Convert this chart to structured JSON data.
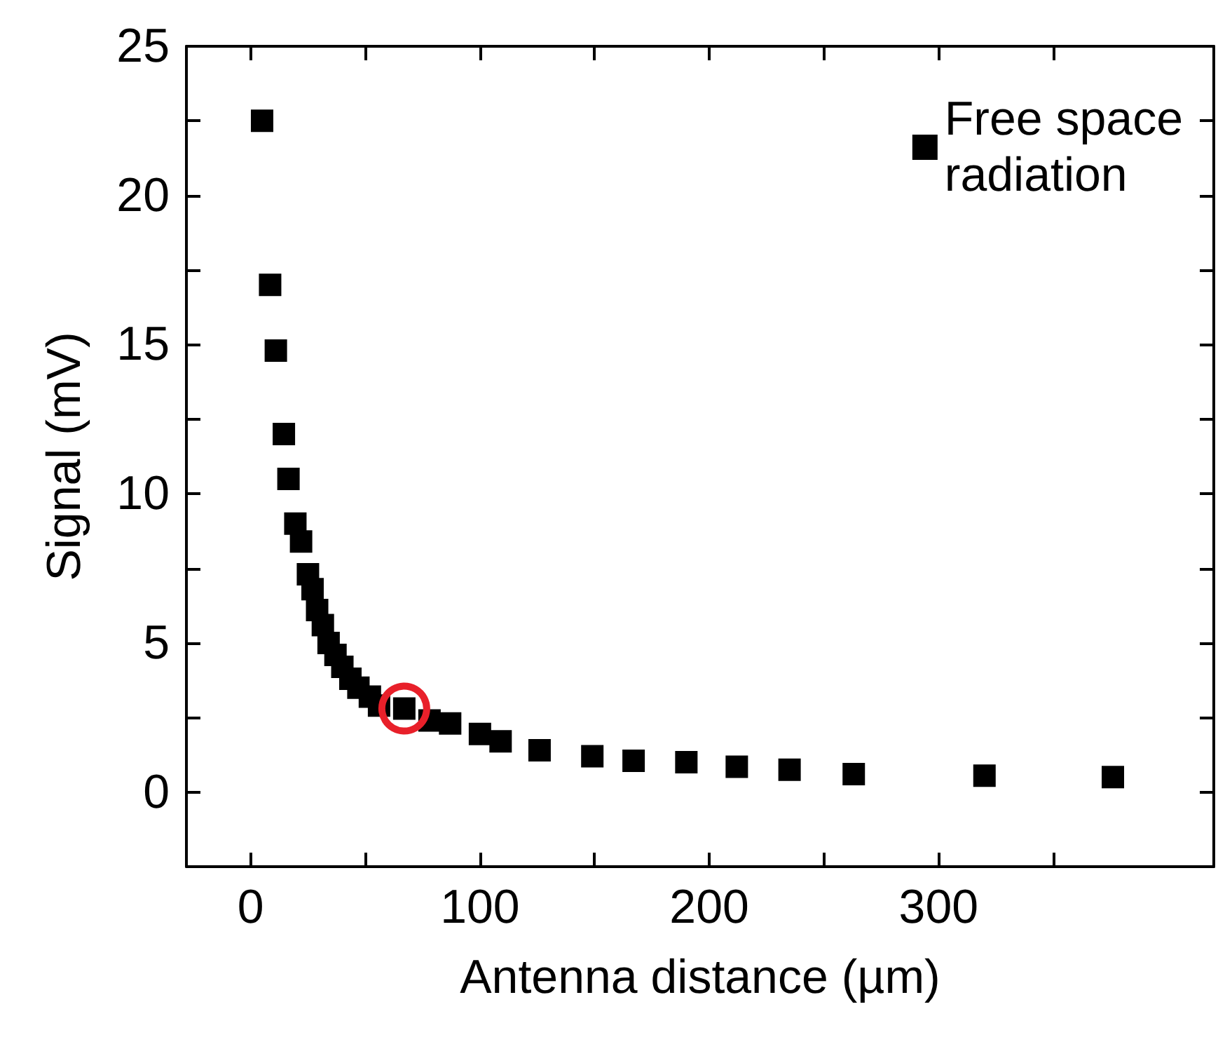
{
  "chart_data": {
    "type": "scatter",
    "xlabel": "Antenna distance (µm)",
    "ylabel": "Signal (mV)",
    "xlim": [
      -28,
      420
    ],
    "ylim": [
      -2.5,
      25
    ],
    "xticks": [
      0,
      {
        "value": 50,
        "label": null
      },
      100,
      {
        "value": 150,
        "label": null
      },
      200,
      {
        "value": 250,
        "label": null
      },
      300,
      {
        "value": 350,
        "label": null
      }
    ],
    "yticks": [
      {
        "value": -2.5,
        "label": null
      },
      0,
      {
        "value": 2.5,
        "label": null
      },
      5,
      {
        "value": 7.5,
        "label": null
      },
      10,
      {
        "value": 12.5,
        "label": null
      },
      15,
      {
        "value": 17.5,
        "label": null
      },
      20,
      {
        "value": 22.5,
        "label": null
      },
      25
    ],
    "grid": false,
    "legend": "top right",
    "marker": "square",
    "series": [
      {
        "name": "Free space\nradiation",
        "color": "#000000",
        "x": [
          5,
          8.5,
          11,
          14.5,
          16.5,
          19.5,
          22,
          25,
          27,
          29,
          31.5,
          34,
          37,
          40,
          43.5,
          47,
          52,
          56,
          67,
          78,
          87,
          100,
          109,
          126,
          149,
          167,
          190,
          212,
          235,
          263,
          320,
          376
        ],
        "values": [
          22.5,
          17,
          14.8,
          12,
          10.5,
          9,
          8.4,
          7.3,
          6.8,
          6.1,
          5.6,
          5,
          4.6,
          4.2,
          3.8,
          3.5,
          3.2,
          2.9,
          2.8,
          2.4,
          2.3,
          1.95,
          1.7,
          1.4,
          1.2,
          1.05,
          1.0,
          0.85,
          0.75,
          0.6,
          0.55,
          0.5
        ]
      },
      {
        "color": "#e8202a",
        "marker": "circle",
        "x": [
          67
        ],
        "values": [
          2.8
        ]
      }
    ]
  }
}
